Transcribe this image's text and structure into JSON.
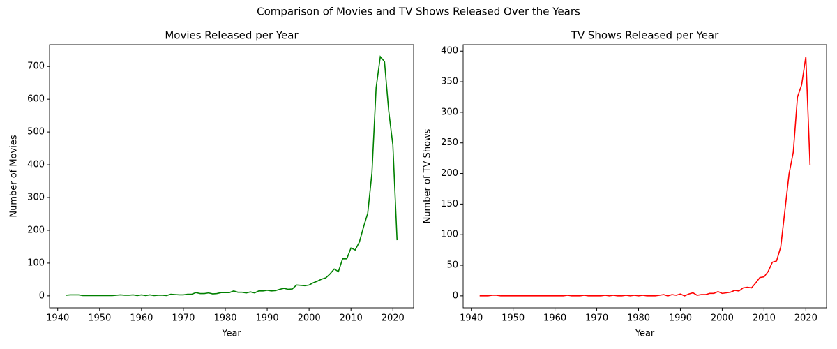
{
  "title": "Comparison of Movies and TV Shows Released Over the Years",
  "chart_data": [
    {
      "type": "line",
      "title": "Movies Released per Year",
      "xlabel": "Year",
      "ylabel": "Number of Movies",
      "x": [
        1942,
        1943,
        1944,
        1945,
        1946,
        1947,
        1948,
        1949,
        1950,
        1951,
        1952,
        1953,
        1954,
        1955,
        1956,
        1957,
        1958,
        1959,
        1960,
        1961,
        1962,
        1963,
        1964,
        1965,
        1966,
        1967,
        1968,
        1969,
        1970,
        1971,
        1972,
        1973,
        1974,
        1975,
        1976,
        1977,
        1978,
        1979,
        1980,
        1981,
        1982,
        1983,
        1984,
        1985,
        1986,
        1987,
        1988,
        1989,
        1990,
        1991,
        1992,
        1993,
        1994,
        1995,
        1996,
        1997,
        1998,
        1999,
        2000,
        2001,
        2002,
        2003,
        2004,
        2005,
        2006,
        2007,
        2008,
        2009,
        2010,
        2011,
        2012,
        2013,
        2014,
        2015,
        2016,
        2017,
        2018,
        2019,
        2020,
        2021
      ],
      "series": [
        {
          "name": "Movies",
          "color": "#008000",
          "values": [
            2,
            3,
            3,
            3,
            1,
            1,
            1,
            1,
            1,
            1,
            1,
            1,
            2,
            3,
            2,
            2,
            3,
            1,
            3,
            1,
            3,
            1,
            2,
            2,
            1,
            5,
            4,
            3,
            3,
            5,
            5,
            10,
            7,
            7,
            9,
            6,
            7,
            10,
            10,
            10,
            15,
            11,
            11,
            9,
            12,
            9,
            15,
            15,
            17,
            15,
            16,
            20,
            23,
            20,
            21,
            33,
            32,
            31,
            33,
            40,
            45,
            51,
            55,
            67,
            82,
            74,
            113,
            113,
            146,
            140,
            164,
            210,
            252,
            375,
            635,
            730,
            715,
            565,
            460,
            170
          ]
        }
      ],
      "xlim": [
        1938.05,
        2024.95
      ],
      "xticks": [
        1940,
        1950,
        1960,
        1970,
        1980,
        1990,
        2000,
        2010,
        2020
      ],
      "ylim": [
        -36.5,
        766.5
      ],
      "yticks": [
        0,
        100,
        200,
        300,
        400,
        500,
        600,
        700
      ]
    },
    {
      "type": "line",
      "title": "TV Shows Released per Year",
      "xlabel": "Year",
      "ylabel": "Number of TV Shows",
      "x": [
        1942,
        1943,
        1944,
        1945,
        1946,
        1947,
        1948,
        1949,
        1950,
        1951,
        1952,
        1953,
        1954,
        1955,
        1956,
        1957,
        1958,
        1959,
        1960,
        1961,
        1962,
        1963,
        1964,
        1965,
        1966,
        1967,
        1968,
        1969,
        1970,
        1971,
        1972,
        1973,
        1974,
        1975,
        1976,
        1977,
        1978,
        1979,
        1980,
        1981,
        1982,
        1983,
        1984,
        1985,
        1986,
        1987,
        1988,
        1989,
        1990,
        1991,
        1992,
        1993,
        1994,
        1995,
        1996,
        1997,
        1998,
        1999,
        2000,
        2001,
        2002,
        2003,
        2004,
        2005,
        2006,
        2007,
        2008,
        2009,
        2010,
        2011,
        2012,
        2013,
        2014,
        2015,
        2016,
        2017,
        2018,
        2019,
        2020,
        2021
      ],
      "series": [
        {
          "name": "TV Shows",
          "color": "#ff0000",
          "values": [
            0,
            0,
            0,
            1,
            1,
            0,
            0,
            0,
            0,
            0,
            0,
            0,
            0,
            0,
            0,
            0,
            0,
            0,
            0,
            0,
            0,
            1,
            0,
            0,
            0,
            1,
            0,
            0,
            0,
            0,
            1,
            0,
            1,
            0,
            0,
            1,
            0,
            1,
            0,
            1,
            0,
            0,
            0,
            1,
            2,
            0,
            2,
            1,
            3,
            0,
            3,
            5,
            1,
            2,
            2,
            4,
            4,
            7,
            4,
            5,
            6,
            9,
            8,
            13,
            14,
            13,
            21,
            30,
            31,
            40,
            55,
            57,
            80,
            140,
            200,
            235,
            325,
            345,
            391,
            214
          ]
        }
      ],
      "xlim": [
        1938.05,
        2024.95
      ],
      "xticks": [
        1940,
        1950,
        1960,
        1970,
        1980,
        1990,
        2000,
        2010,
        2020
      ],
      "ylim": [
        -19.55,
        410.55
      ],
      "yticks": [
        0,
        50,
        100,
        150,
        200,
        250,
        300,
        350,
        400
      ]
    }
  ]
}
